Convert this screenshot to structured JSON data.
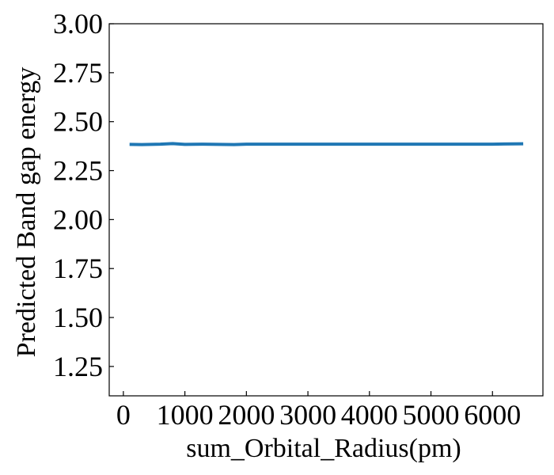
{
  "chart_data": {
    "type": "line",
    "title": "",
    "xlabel": "sum_Orbital_Radius(pm)",
    "ylabel": "Predicted Band gap energy",
    "xlim": [
      -230,
      6820
    ],
    "ylim": [
      1.1,
      3.0
    ],
    "xticks": [
      0,
      1000,
      2000,
      3000,
      4000,
      5000,
      6000
    ],
    "xtick_labels": [
      "0",
      "1000",
      "2000",
      "3000",
      "4000",
      "5000",
      "6000"
    ],
    "yticks": [
      1.25,
      1.5,
      1.75,
      2.0,
      2.25,
      2.5,
      2.75,
      3.0
    ],
    "ytick_labels": [
      "1.25",
      "1.50",
      "1.75",
      "2.00",
      "2.25",
      "2.50",
      "2.75",
      "3.00"
    ],
    "grid": false,
    "series": [
      {
        "color": "#1f77b4",
        "x": [
          100,
          300,
          600,
          800,
          1000,
          1300,
          1800,
          2000,
          3000,
          4000,
          5000,
          6000,
          6500
        ],
        "y": [
          2.384,
          2.383,
          2.385,
          2.388,
          2.384,
          2.385,
          2.383,
          2.385,
          2.385,
          2.385,
          2.385,
          2.385,
          2.387
        ]
      }
    ]
  }
}
